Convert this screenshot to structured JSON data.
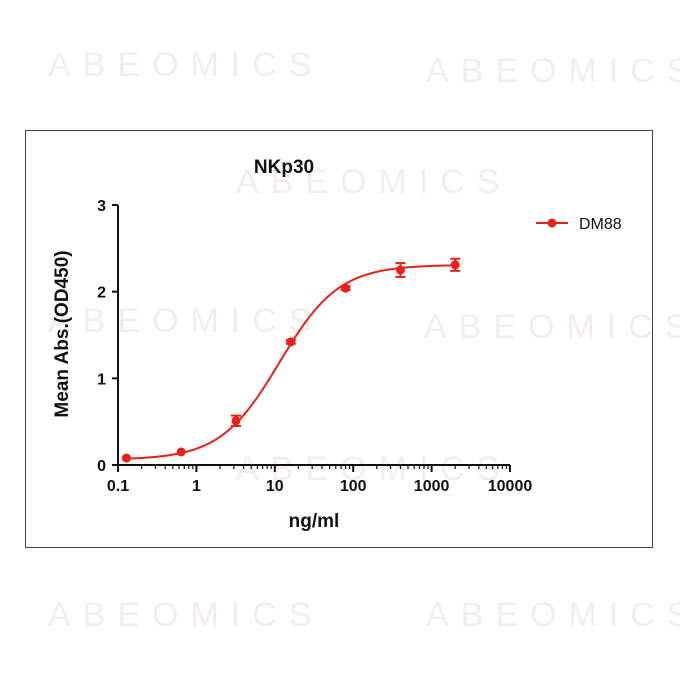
{
  "watermarks": [
    "ABEOMICS",
    "ABEOMICS",
    "ABEOMICS",
    "ABEOMICS",
    "ABEOMICS",
    "ABEOMICS",
    "ABEOMICS",
    "ABEOMICS"
  ],
  "colors": {
    "series": "#e8221b",
    "axis": "#111111",
    "watermark": "#f3eded"
  },
  "chart_data": {
    "type": "line",
    "title": "NKp30",
    "xlabel": "ng/ml",
    "ylabel": "Mean Abs.(OD450)",
    "xscale": "log",
    "xlim": [
      0.1,
      10000
    ],
    "ylim": [
      0,
      3
    ],
    "xticks": [
      0.1,
      1,
      10,
      100,
      1000,
      10000
    ],
    "xtick_labels": [
      "0.1",
      "1",
      "10",
      "100",
      "1000",
      "10000"
    ],
    "yticks": [
      0,
      1,
      2,
      3
    ],
    "ytick_labels": [
      "0",
      "1",
      "2",
      "3"
    ],
    "grid": false,
    "legend": "top-right",
    "series": [
      {
        "name": "DM88",
        "x": [
          0.128,
          0.64,
          3.2,
          16,
          80,
          400,
          2000
        ],
        "y": [
          0.08,
          0.15,
          0.51,
          1.42,
          2.04,
          2.25,
          2.31
        ],
        "err": [
          0.01,
          0.01,
          0.06,
          0.02,
          0.02,
          0.08,
          0.07
        ],
        "fit": {
          "model": "4PL",
          "bottom": 0.06,
          "top": 2.31,
          "ec50": 11.5,
          "hill": 1.15
        }
      }
    ]
  }
}
